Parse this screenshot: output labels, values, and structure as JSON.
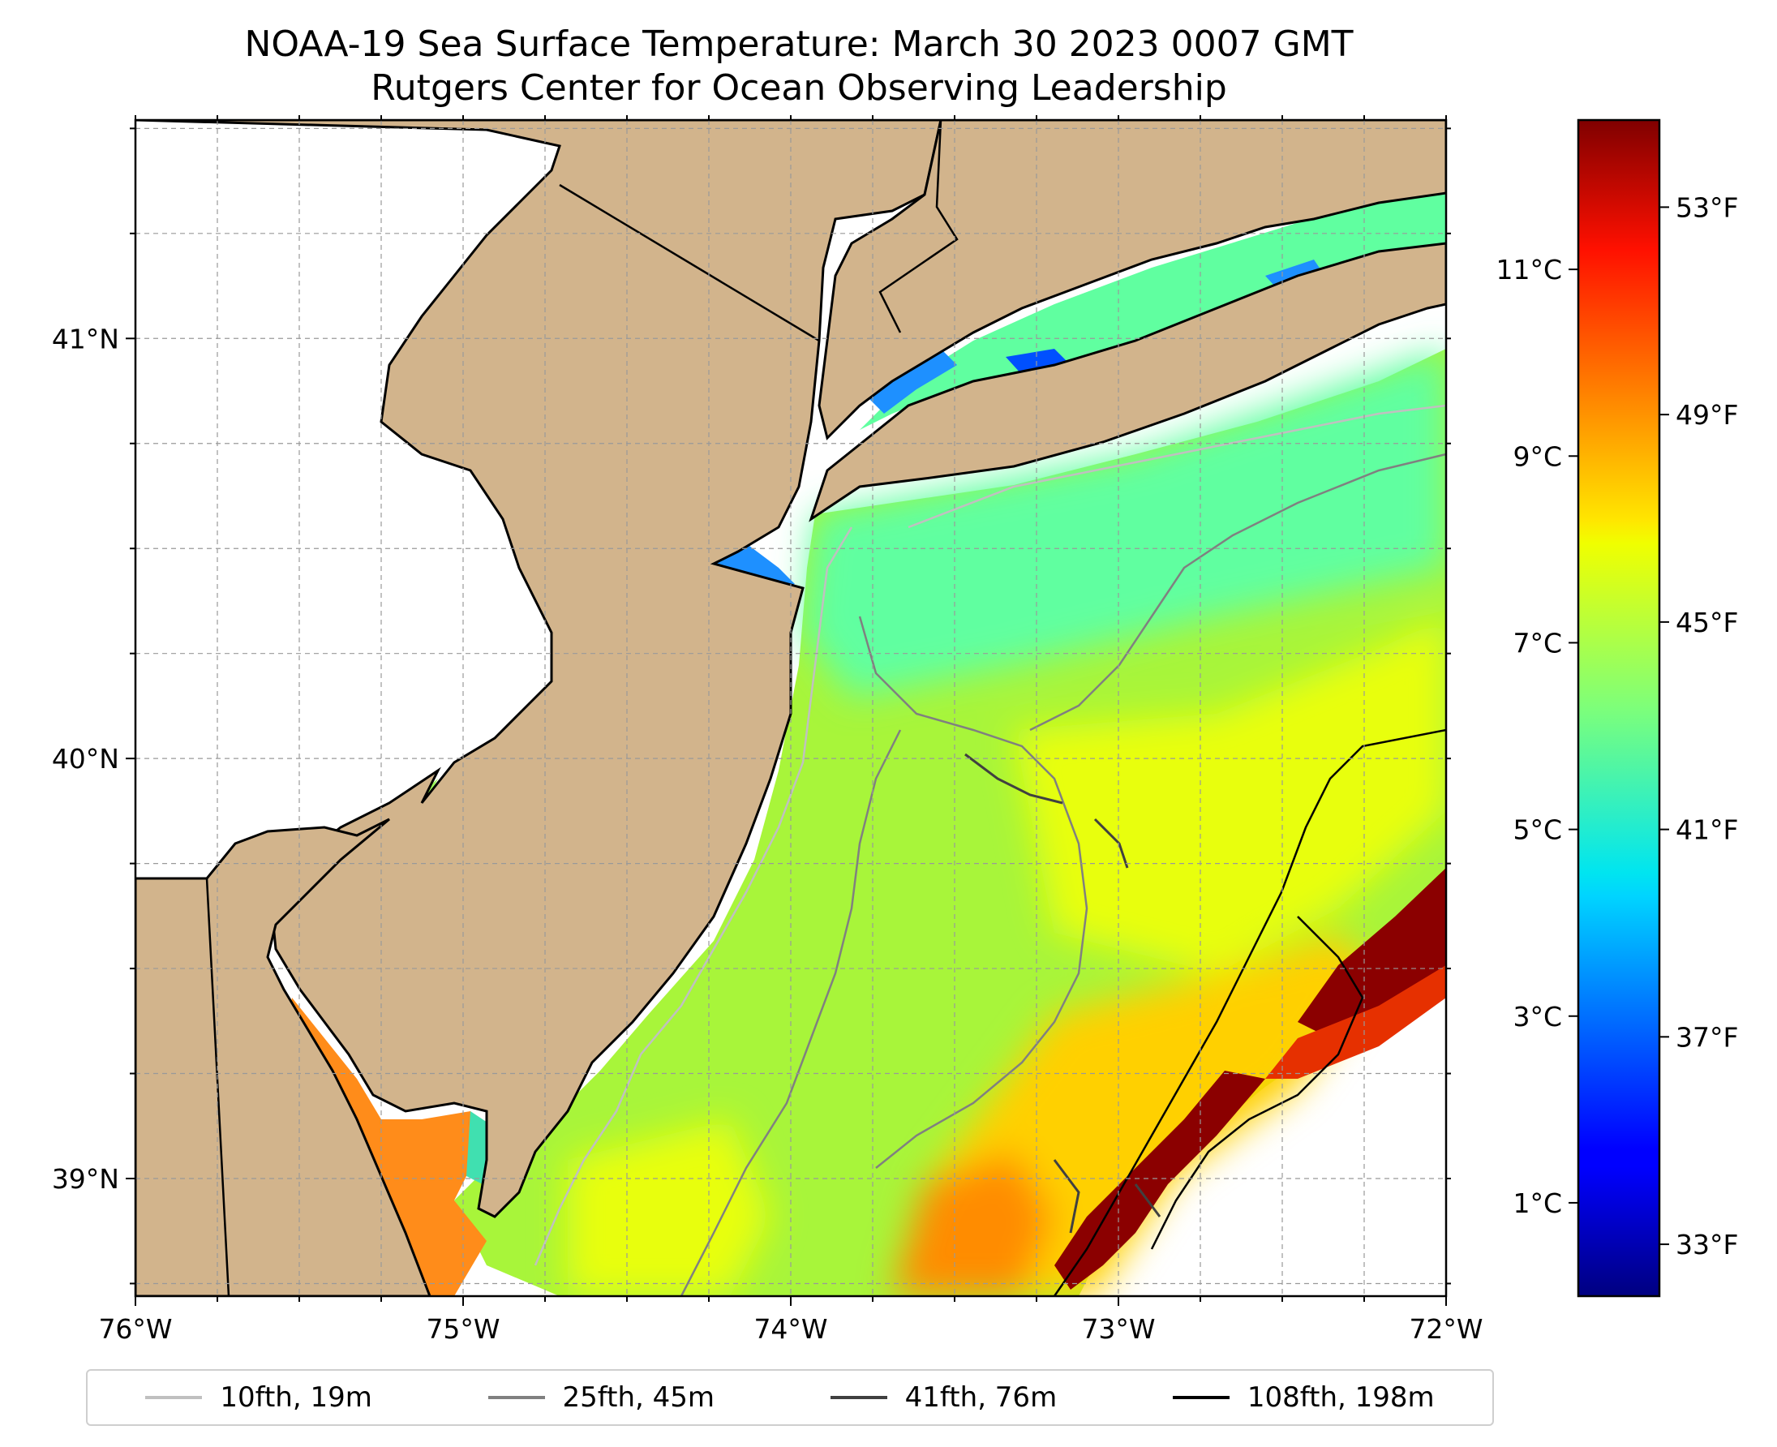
{
  "title": {
    "line1": "NOAA-19 Sea Surface Temperature: March 30 2023 0007 GMT",
    "line2": "Rutgers Center for Ocean Observing Leadership"
  },
  "map": {
    "lon_range": [
      -76,
      -72
    ],
    "lat_range": [
      38.72,
      41.52
    ],
    "lon_ticks": [
      {
        "value": -76,
        "label": "76°W"
      },
      {
        "value": -75,
        "label": "75°W"
      },
      {
        "value": -74,
        "label": "74°W"
      },
      {
        "value": -73,
        "label": "73°W"
      },
      {
        "value": -72,
        "label": "72°W"
      }
    ],
    "lat_ticks": [
      {
        "value": 41,
        "label": "41°N"
      },
      {
        "value": 40,
        "label": "40°N"
      },
      {
        "value": 39,
        "label": "39°N"
      }
    ],
    "land_color": "#d2b48c",
    "grid": "dashed"
  },
  "colorbar": {
    "colormap": "jet",
    "range_c": [
      0.0,
      12.6
    ],
    "celsius_ticks": [
      {
        "value": 1,
        "label": "1°C"
      },
      {
        "value": 3,
        "label": "3°C"
      },
      {
        "value": 5,
        "label": "5°C"
      },
      {
        "value": 7,
        "label": "7°C"
      },
      {
        "value": 9,
        "label": "9°C"
      },
      {
        "value": 11,
        "label": "11°C"
      }
    ],
    "fahrenheit_ticks": [
      {
        "value": 33,
        "label": "33°F"
      },
      {
        "value": 37,
        "label": "37°F"
      },
      {
        "value": 41,
        "label": "41°F"
      },
      {
        "value": 45,
        "label": "45°F"
      },
      {
        "value": 49,
        "label": "49°F"
      },
      {
        "value": 53,
        "label": "53°F"
      }
    ]
  },
  "legend": [
    {
      "label": "10fth, 19m",
      "color": "#c0c0c0"
    },
    {
      "label": "25fth, 45m",
      "color": "#808080"
    },
    {
      "label": "41fth, 76m",
      "color": "#404040"
    },
    {
      "label": "108fth, 198m",
      "color": "#000000"
    }
  ]
}
